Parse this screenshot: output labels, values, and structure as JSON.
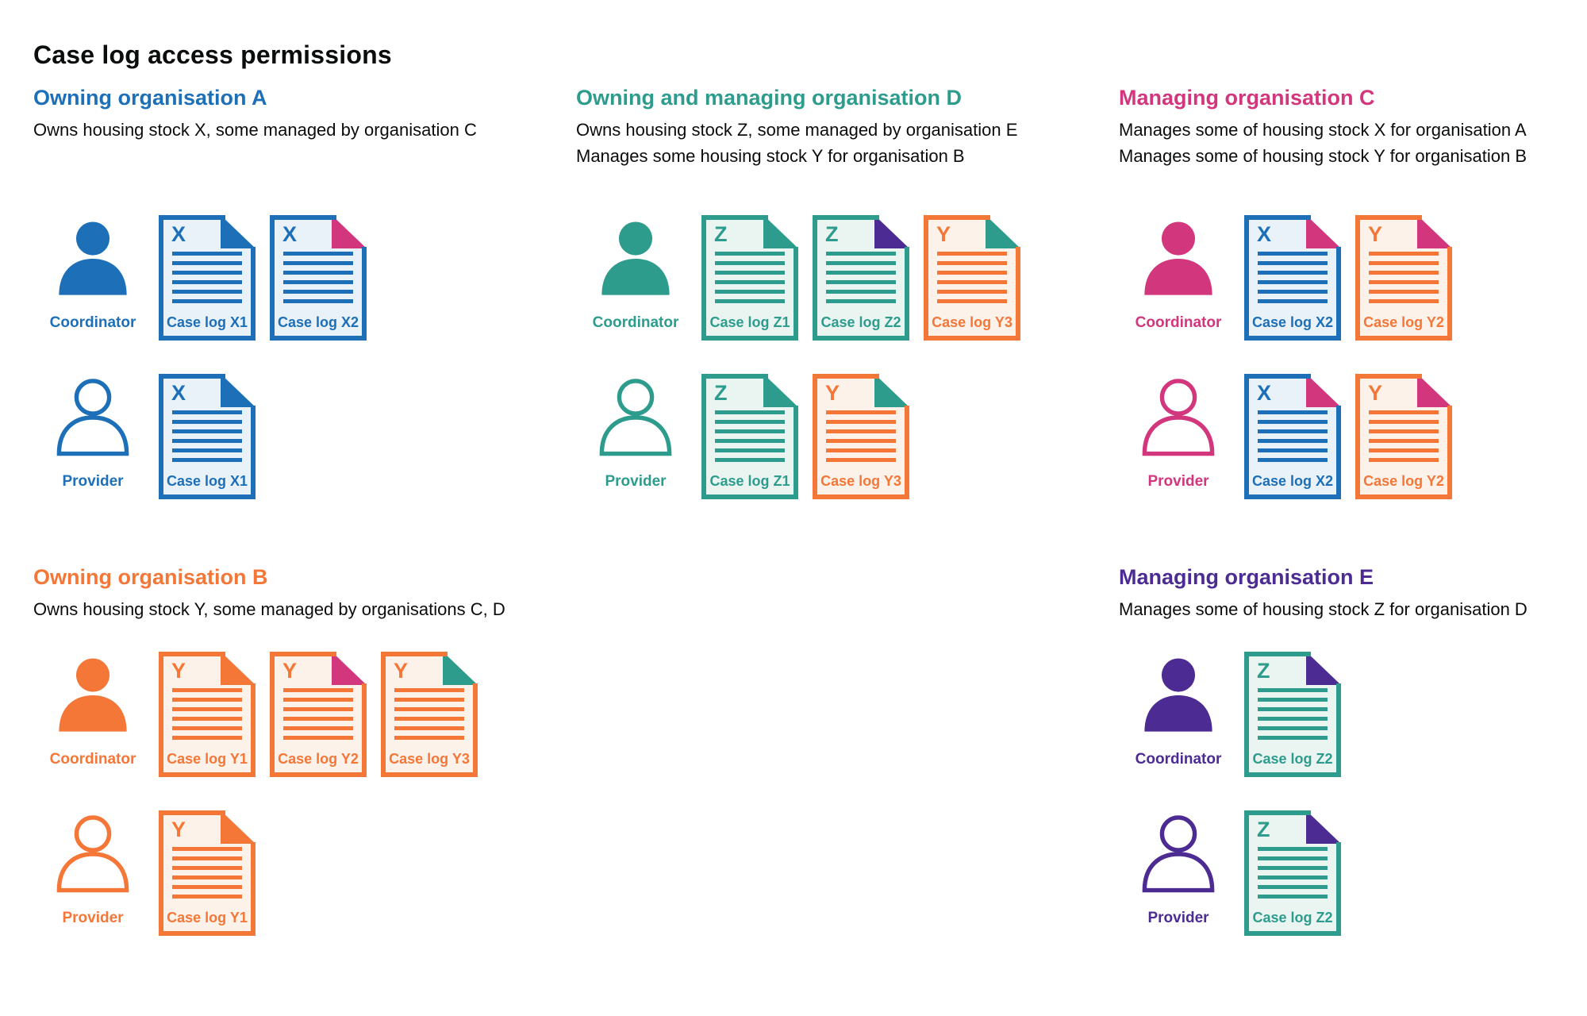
{
  "page": {
    "title": "Case log access permissions"
  },
  "colors": {
    "blue": "#1d70b8",
    "teal": "#2d9c8d",
    "pink": "#d2367c",
    "orange": "#f47738",
    "purple": "#4c2c92",
    "text": "#0b0c0c",
    "background": "#ffffff"
  },
  "doc_fills": {
    "blue": "#e9f1f9",
    "teal": "#eaf5f2",
    "orange": "#fdf2ea"
  },
  "organisations": [
    {
      "id": "A",
      "heading": "Owning organisation A",
      "color": "blue",
      "description_lines": [
        "Owns housing stock X, some managed by organisation C"
      ],
      "roles": [
        {
          "role": "coordinator",
          "label": "Coordinator",
          "docs": [
            {
              "letter": "X",
              "caption": "Case log X1",
              "doc_color": "blue",
              "fold_color": "blue"
            },
            {
              "letter": "X",
              "caption": "Case log X2",
              "doc_color": "blue",
              "fold_color": "pink"
            }
          ]
        },
        {
          "role": "provider",
          "label": "Provider",
          "docs": [
            {
              "letter": "X",
              "caption": "Case log X1",
              "doc_color": "blue",
              "fold_color": "blue"
            }
          ]
        }
      ]
    },
    {
      "id": "D",
      "heading": "Owning and managing organisation D",
      "color": "teal",
      "description_lines": [
        "Owns housing stock Z, some managed by organisation E",
        "Manages some housing stock Y for organisation B"
      ],
      "roles": [
        {
          "role": "coordinator",
          "label": "Coordinator",
          "docs": [
            {
              "letter": "Z",
              "caption": "Case log Z1",
              "doc_color": "teal",
              "fold_color": "teal"
            },
            {
              "letter": "Z",
              "caption": "Case log Z2",
              "doc_color": "teal",
              "fold_color": "purple"
            },
            {
              "letter": "Y",
              "caption": "Case log Y3",
              "doc_color": "orange",
              "fold_color": "teal"
            }
          ]
        },
        {
          "role": "provider",
          "label": "Provider",
          "docs": [
            {
              "letter": "Z",
              "caption": "Case log Z1",
              "doc_color": "teal",
              "fold_color": "teal"
            },
            {
              "letter": "Y",
              "caption": "Case log Y3",
              "doc_color": "orange",
              "fold_color": "teal"
            }
          ]
        }
      ]
    },
    {
      "id": "C",
      "heading": "Managing organisation C",
      "color": "pink",
      "description_lines": [
        "Manages some of housing stock X for organisation A",
        "Manages some of housing stock Y for organisation B"
      ],
      "roles": [
        {
          "role": "coordinator",
          "label": "Coordinator",
          "docs": [
            {
              "letter": "X",
              "caption": "Case log X2",
              "doc_color": "blue",
              "fold_color": "pink"
            },
            {
              "letter": "Y",
              "caption": "Case log Y2",
              "doc_color": "orange",
              "fold_color": "pink"
            }
          ]
        },
        {
          "role": "provider",
          "label": "Provider",
          "docs": [
            {
              "letter": "X",
              "caption": "Case log X2",
              "doc_color": "blue",
              "fold_color": "pink"
            },
            {
              "letter": "Y",
              "caption": "Case log Y2",
              "doc_color": "orange",
              "fold_color": "pink"
            }
          ]
        }
      ]
    },
    {
      "id": "B",
      "heading": "Owning organisation B",
      "color": "orange",
      "description_lines": [
        "Owns housing stock Y, some managed by organisations C, D"
      ],
      "roles": [
        {
          "role": "coordinator",
          "label": "Coordinator",
          "docs": [
            {
              "letter": "Y",
              "caption": "Case log Y1",
              "doc_color": "orange",
              "fold_color": "orange"
            },
            {
              "letter": "Y",
              "caption": "Case log Y2",
              "doc_color": "orange",
              "fold_color": "pink"
            },
            {
              "letter": "Y",
              "caption": "Case log Y3",
              "doc_color": "orange",
              "fold_color": "teal"
            }
          ]
        },
        {
          "role": "provider",
          "label": "Provider",
          "docs": [
            {
              "letter": "Y",
              "caption": "Case log Y1",
              "doc_color": "orange",
              "fold_color": "orange"
            }
          ]
        }
      ]
    },
    {
      "id": "E",
      "heading": "Managing organisation E",
      "color": "purple",
      "description_lines": [
        "Manages some of housing stock Z for organisation D"
      ],
      "roles": [
        {
          "role": "coordinator",
          "label": "Coordinator",
          "docs": [
            {
              "letter": "Z",
              "caption": "Case log Z2",
              "doc_color": "teal",
              "fold_color": "purple"
            }
          ]
        },
        {
          "role": "provider",
          "label": "Provider",
          "docs": [
            {
              "letter": "Z",
              "caption": "Case log Z2",
              "doc_color": "teal",
              "fold_color": "purple"
            }
          ]
        }
      ]
    }
  ]
}
